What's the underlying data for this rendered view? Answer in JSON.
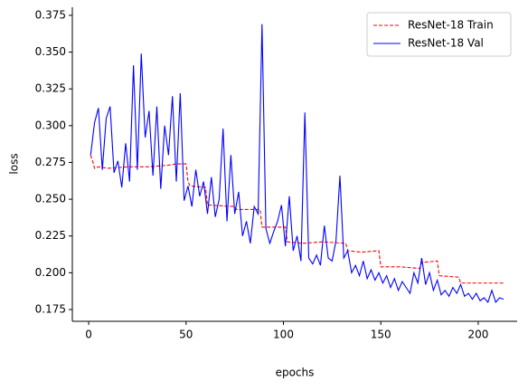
{
  "chart_data": {
    "type": "line",
    "xlabel": "epochs",
    "ylabel": "loss",
    "xlim": [
      -8.4,
      220
    ],
    "ylim": [
      0.167,
      0.3805
    ],
    "xticks": [
      0,
      50,
      100,
      150,
      200
    ],
    "yticks": [
      0.175,
      {
        "value": 0.2,
        "label": "0.200"
      },
      0.225,
      {
        "value": 0.25,
        "label": "0.250"
      },
      0.275,
      {
        "value": 0.3,
        "label": "0.300"
      },
      0.325,
      {
        "value": 0.35,
        "label": "0.350"
      },
      0.375
    ],
    "legend": "upper right",
    "series": [
      {
        "name": "ResNet-18 Train",
        "color": "#ff0000",
        "dash": true,
        "x": [
          1,
          2,
          3,
          5,
          10,
          20,
          30,
          40,
          45,
          50,
          51,
          52,
          60,
          61,
          62,
          75,
          76,
          88,
          89,
          101,
          102,
          110,
          120,
          132,
          133,
          140,
          149,
          150,
          160,
          170,
          171,
          179,
          180,
          190,
          191,
          200,
          213
        ],
        "values": [
          0.28,
          0.276,
          0.271,
          0.272,
          0.271,
          0.272,
          0.272,
          0.273,
          0.274,
          0.274,
          0.262,
          0.259,
          0.258,
          0.246,
          0.246,
          0.245,
          0.243,
          0.243,
          0.231,
          0.231,
          0.221,
          0.22,
          0.221,
          0.22,
          0.215,
          0.214,
          0.215,
          0.204,
          0.204,
          0.203,
          0.207,
          0.208,
          0.198,
          0.197,
          0.193,
          0.193,
          0.193
        ]
      },
      {
        "name": "ResNet-18 Val",
        "color": "#0000ff",
        "dash": false,
        "x": [
          1,
          3,
          5,
          7,
          9,
          11,
          13,
          15,
          17,
          19,
          21,
          23,
          25,
          27,
          29,
          31,
          33,
          35,
          37,
          39,
          41,
          43,
          45,
          47,
          49,
          51,
          53,
          55,
          57,
          59,
          61,
          63,
          65,
          67,
          69,
          71,
          73,
          75,
          77,
          79,
          81,
          83,
          85,
          87,
          89,
          91,
          93,
          95,
          97,
          99,
          101,
          103,
          105,
          107,
          109,
          111,
          113,
          115,
          117,
          119,
          121,
          123,
          125,
          127,
          129,
          131,
          133,
          135,
          137,
          139,
          141,
          143,
          145,
          147,
          149,
          151,
          153,
          155,
          157,
          159,
          161,
          163,
          165,
          167,
          169,
          171,
          173,
          175,
          177,
          179,
          181,
          183,
          185,
          187,
          189,
          191,
          193,
          195,
          197,
          199,
          201,
          203,
          205,
          207,
          209,
          211,
          213
        ],
        "values": [
          0.28,
          0.302,
          0.312,
          0.27,
          0.305,
          0.313,
          0.268,
          0.276,
          0.258,
          0.288,
          0.262,
          0.341,
          0.27,
          0.349,
          0.292,
          0.31,
          0.266,
          0.313,
          0.257,
          0.3,
          0.28,
          0.32,
          0.262,
          0.322,
          0.249,
          0.259,
          0.245,
          0.27,
          0.252,
          0.262,
          0.24,
          0.265,
          0.238,
          0.25,
          0.298,
          0.235,
          0.28,
          0.24,
          0.255,
          0.225,
          0.235,
          0.22,
          0.245,
          0.24,
          0.369,
          0.23,
          0.22,
          0.228,
          0.235,
          0.246,
          0.218,
          0.252,
          0.215,
          0.225,
          0.208,
          0.309,
          0.21,
          0.206,
          0.212,
          0.205,
          0.232,
          0.21,
          0.208,
          0.222,
          0.266,
          0.21,
          0.215,
          0.2,
          0.205,
          0.198,
          0.208,
          0.196,
          0.202,
          0.195,
          0.2,
          0.193,
          0.198,
          0.19,
          0.196,
          0.188,
          0.194,
          0.19,
          0.186,
          0.2,
          0.193,
          0.21,
          0.192,
          0.2,
          0.188,
          0.195,
          0.185,
          0.188,
          0.184,
          0.19,
          0.186,
          0.192,
          0.184,
          0.186,
          0.182,
          0.186,
          0.181,
          0.183,
          0.18,
          0.188,
          0.18,
          0.183,
          0.182
        ]
      }
    ]
  }
}
